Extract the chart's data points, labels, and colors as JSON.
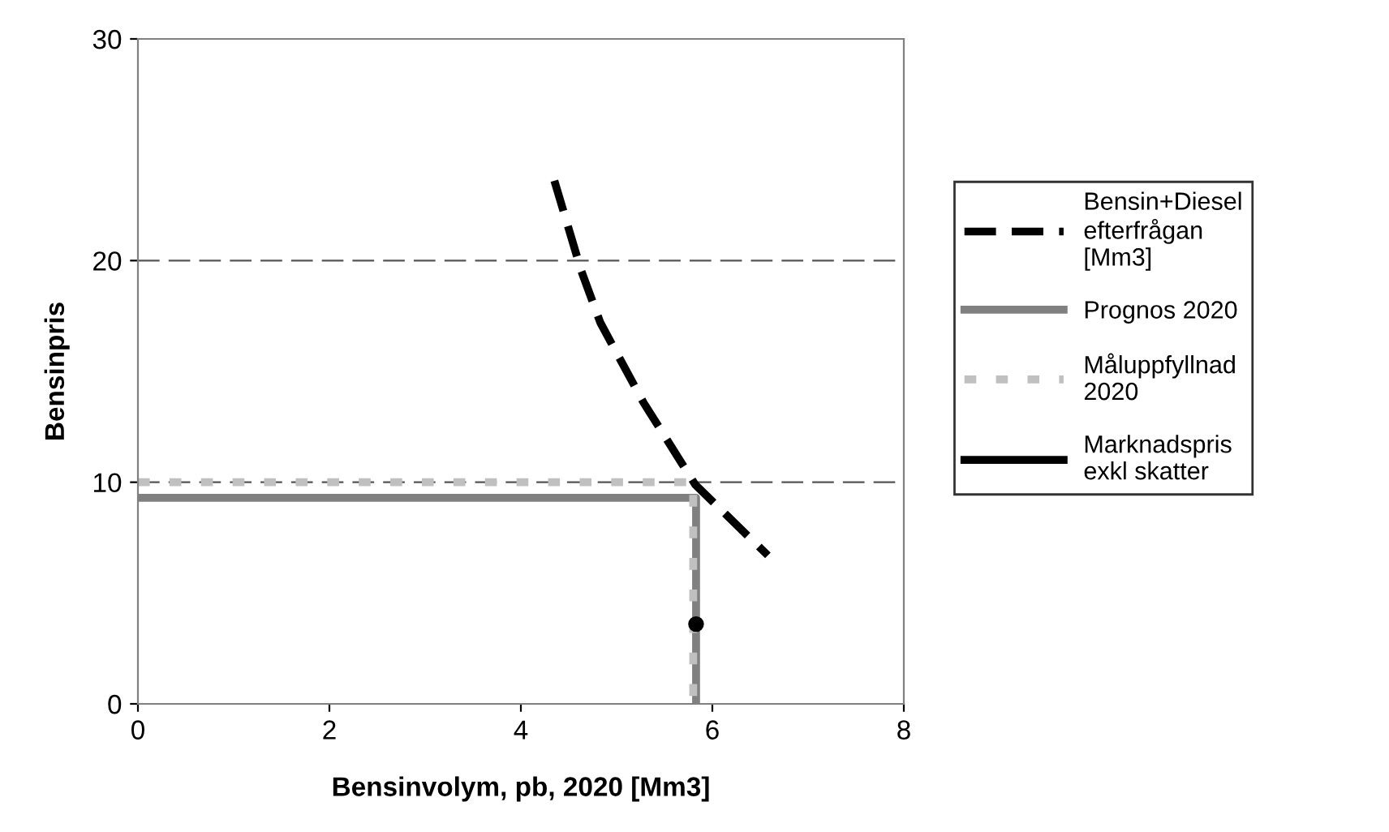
{
  "chart_data": {
    "type": "line",
    "xlabel": "Bensinvolym, pb, 2020 [Mm3]",
    "ylabel": "Bensinpris",
    "xlim": [
      0,
      8
    ],
    "xticks": [
      0,
      2,
      4,
      6,
      8
    ],
    "ylim": [
      0,
      30
    ],
    "yticks": [
      0,
      10,
      20,
      30
    ],
    "grid": "y",
    "legend": "right",
    "series": [
      {
        "name": "Bensin+Diesel efterfrågan [Mm3]",
        "color": "#000000",
        "line_style": "dashed",
        "x": [
          4.35,
          4.63,
          4.83,
          5.28,
          5.82,
          6.58
        ],
        "values": [
          23.6,
          19.55,
          17.2,
          13.6,
          9.9,
          6.7
        ]
      },
      {
        "name": "Prognos 2020",
        "color": "#808080",
        "line_style": "solid",
        "x": [
          0,
          5.83,
          5.83
        ],
        "values": [
          9.3,
          9.3,
          0
        ]
      },
      {
        "name": "Måluppfyllnad 2020",
        "color": "#c0c0c0",
        "line_style": "dotted",
        "x": [
          0,
          5.8,
          5.8
        ],
        "values": [
          10.0,
          10.0,
          0
        ]
      },
      {
        "name": "Marknadspris exkl skatter",
        "color": "#000000",
        "line_style": "solid",
        "marker": "circle",
        "x": [
          5.83
        ],
        "values": [
          3.6
        ]
      }
    ]
  }
}
